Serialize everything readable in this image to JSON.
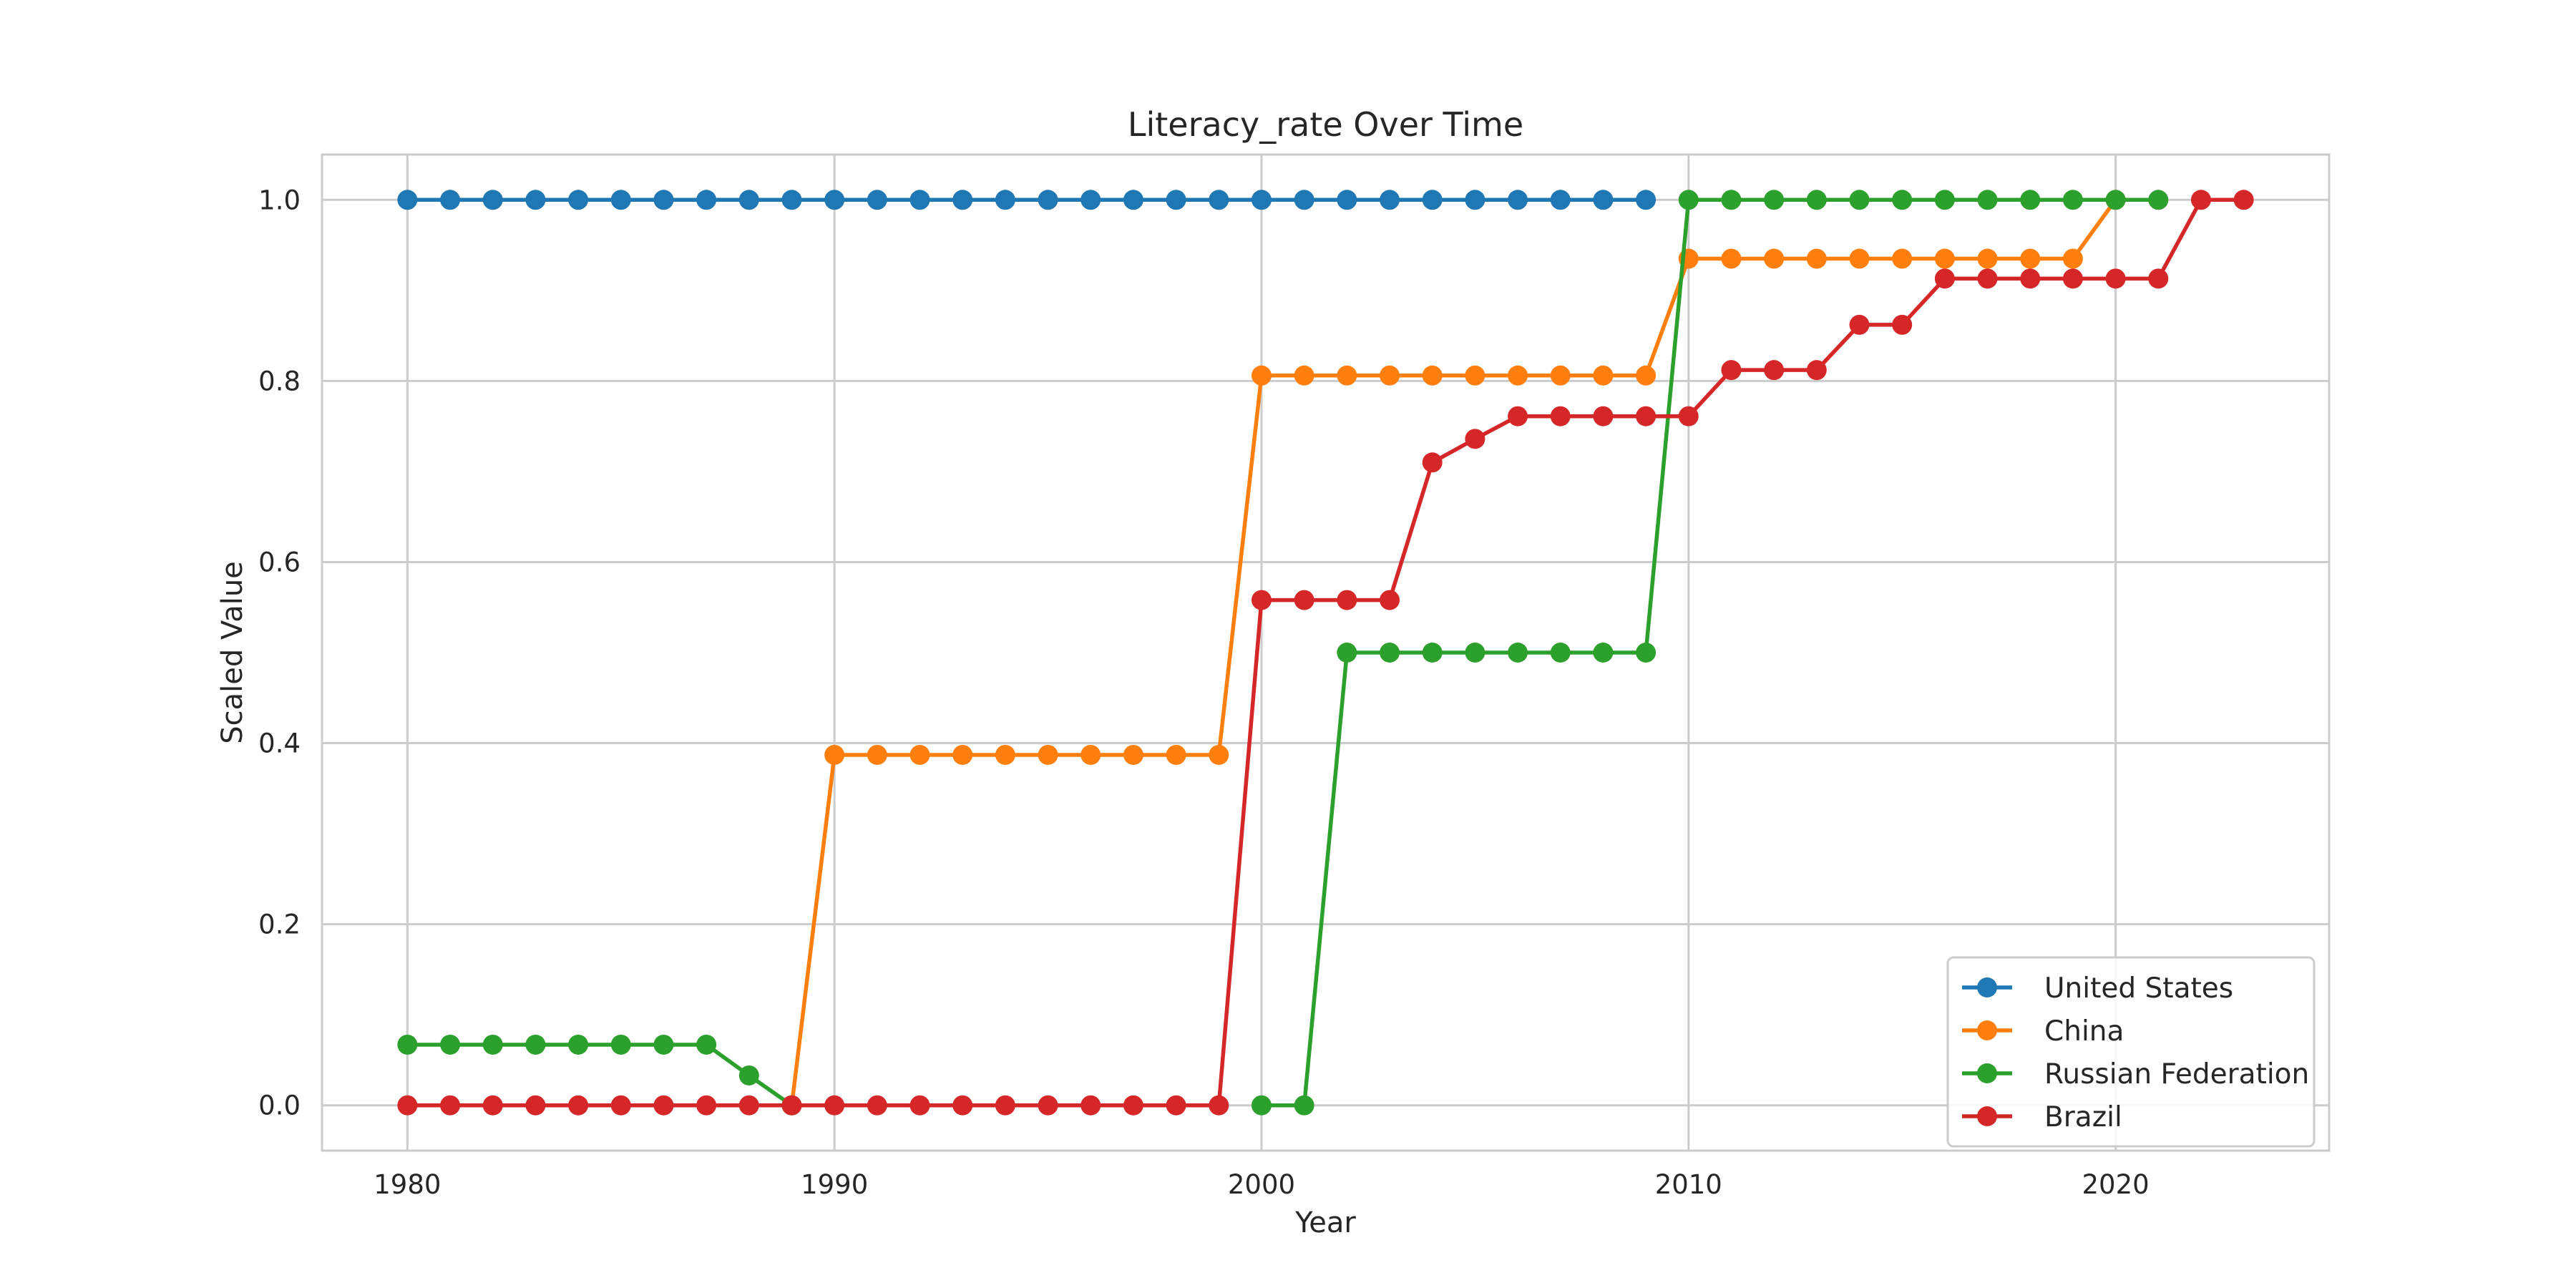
{
  "chart_data": {
    "type": "line",
    "title": "Literacy_rate Over Time",
    "xlabel": "Year",
    "ylabel": "Scaled Value",
    "xlim": [
      1978,
      2025
    ],
    "ylim": [
      -0.05,
      1.05
    ],
    "xticks": [
      1980,
      1990,
      2000,
      2010,
      2020
    ],
    "yticks": [
      "0.0",
      "0.2",
      "0.4",
      "0.6",
      "0.8",
      "1.0"
    ],
    "grid": true,
    "legend_position": "lower-right",
    "x": [
      1980,
      1981,
      1982,
      1983,
      1984,
      1985,
      1986,
      1987,
      1988,
      1989,
      1990,
      1991,
      1992,
      1993,
      1994,
      1995,
      1996,
      1997,
      1998,
      1999,
      2000,
      2001,
      2002,
      2003,
      2004,
      2005,
      2006,
      2007,
      2008,
      2009,
      2010,
      2011,
      2012,
      2013,
      2014,
      2015,
      2016,
      2017,
      2018,
      2019,
      2020,
      2021,
      2022,
      2023
    ],
    "series": [
      {
        "name": "United States",
        "color": "#1f77b4",
        "values": [
          1,
          1,
          1,
          1,
          1,
          1,
          1,
          1,
          1,
          1,
          1,
          1,
          1,
          1,
          1,
          1,
          1,
          1,
          1,
          1,
          1,
          1,
          1,
          1,
          1,
          1,
          1,
          1,
          1,
          1,
          null,
          null,
          null,
          null,
          null,
          null,
          null,
          null,
          null,
          null,
          null,
          null,
          null,
          null
        ]
      },
      {
        "name": "China",
        "color": "#ff7f0e",
        "values": [
          null,
          null,
          null,
          null,
          null,
          null,
          null,
          null,
          null,
          0,
          0.387,
          0.387,
          0.387,
          0.387,
          0.387,
          0.387,
          0.387,
          0.387,
          0.387,
          0.387,
          0.806,
          0.806,
          0.806,
          0.806,
          0.806,
          0.806,
          0.806,
          0.806,
          0.806,
          0.806,
          0.935,
          0.935,
          0.935,
          0.935,
          0.935,
          0.935,
          0.935,
          0.935,
          0.935,
          0.935,
          1,
          null,
          null,
          null
        ]
      },
      {
        "name": "Russian Federation",
        "color": "#2ca02c",
        "values": [
          0.067,
          0.067,
          0.067,
          0.067,
          0.067,
          0.067,
          0.067,
          0.067,
          0.033,
          0,
          null,
          null,
          null,
          null,
          null,
          null,
          null,
          null,
          null,
          null,
          0,
          0,
          0.5,
          0.5,
          0.5,
          0.5,
          0.5,
          0.5,
          0.5,
          0.5,
          1,
          1,
          1,
          1,
          1,
          1,
          1,
          1,
          1,
          1,
          1,
          1,
          null,
          null
        ]
      },
      {
        "name": "Brazil",
        "color": "#d62728",
        "values": [
          0,
          0,
          0,
          0,
          0,
          0,
          0,
          0,
          0,
          0,
          0,
          0,
          0,
          0,
          0,
          0,
          0,
          0,
          0,
          0,
          0.558,
          0.558,
          0.558,
          0.558,
          0.71,
          0.736,
          0.761,
          0.761,
          0.761,
          0.761,
          0.761,
          0.812,
          0.812,
          0.812,
          0.862,
          0.862,
          0.913,
          0.913,
          0.913,
          0.913,
          0.913,
          0.913,
          1,
          1
        ]
      }
    ]
  }
}
